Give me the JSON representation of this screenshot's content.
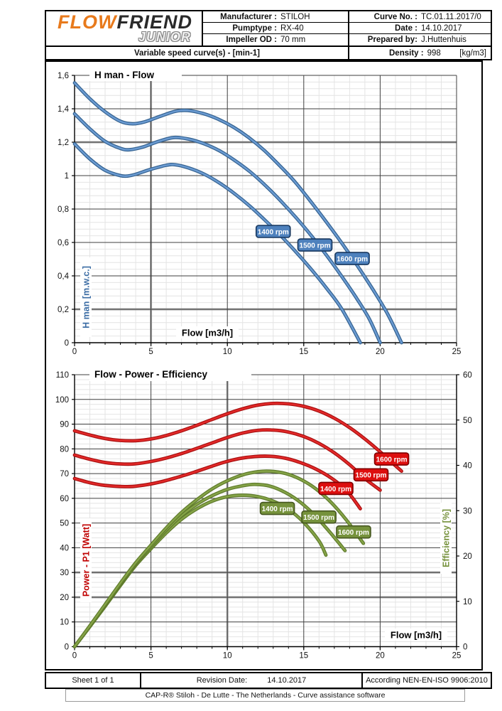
{
  "header": {
    "logo": {
      "flow": "FLOW",
      "friend": "FRIEND",
      "junior": "JUNIOR"
    },
    "manufacturer": {
      "label": "Manufacturer :",
      "value": "STILOH"
    },
    "pumptype": {
      "label": "Pumptype :",
      "value": "RX-40"
    },
    "impeller": {
      "label": "Impeller OD :",
      "value": "70 mm"
    },
    "curve_no": {
      "label": "Curve No. :",
      "value": "TC.01.11.2017/0"
    },
    "date": {
      "label": "Date :",
      "value": "14.10.2017"
    },
    "prepared": {
      "label": "Prepared by:",
      "value": "J.Huttenhuis"
    },
    "variable_speed": "Variable speed curve(s) -  [min-1]",
    "density": {
      "label": "Density :",
      "value": "998",
      "unit": "[kg/m3]"
    }
  },
  "footer": {
    "sheet": "Sheet 1 of 1",
    "revision": {
      "label": "Revision Date:",
      "value": "14.10.2017"
    },
    "according": "According NEN-EN-ISO 9906:2010",
    "software": "CAP-R®  Stiloh - De Lutte - The Netherlands - Curve assistance software"
  },
  "colors": {
    "blue": "#4e81bd",
    "blue_dark": "#17375e",
    "blue_edge": "#33618f",
    "blue_core": "#6b9bd2",
    "red": "#dd0f0f",
    "red_dark": "#7f0000",
    "red_edge": "#a80f0f",
    "red_core": "#e32929",
    "green": "#76923c",
    "green_dark": "#45561f",
    "green_edge": "#5e7a2b",
    "green_core": "#85a347",
    "grid_major": "#3f3f3f",
    "grid_minor": "#e4e4e4",
    "grid_emphasis": "#a8a8a8",
    "axis": "#000000",
    "label_blue": "#3d6ea5",
    "label_red": "#c00000",
    "label_green": "#76923c"
  },
  "chart_data": [
    {
      "type": "line",
      "title": "H man - Flow",
      "xlabel": "Flow [m3/h]",
      "ylabel": "H man [m.w.c.]",
      "xlim": [
        0,
        25
      ],
      "ylim": [
        0,
        1.6
      ],
      "x_ticks": [
        0,
        5,
        10,
        15,
        20,
        25
      ],
      "y_ticks": [
        0,
        0.2,
        0.4,
        0.6,
        0.8,
        1,
        1.2,
        1.4,
        1.6
      ],
      "y_tick_labels": [
        "0",
        "0,2",
        "0,4",
        "0,6",
        "0,8",
        "1",
        "1,2",
        "1,4",
        "1,6"
      ],
      "grid": true,
      "series": [
        {
          "id": "head-1400",
          "name": "1400 rpm",
          "axis": "left",
          "color": "blue",
          "label_at": [
            13.0,
            0.666
          ],
          "points": [
            [
              0,
              1.19
            ],
            [
              1,
              1.1
            ],
            [
              2,
              1.032
            ],
            [
              3,
              1.0
            ],
            [
              3.5,
              0.998
            ],
            [
              4,
              1.008
            ],
            [
              5,
              1.038
            ],
            [
              6,
              1.062
            ],
            [
              6.6,
              1.065
            ],
            [
              7.5,
              1.045
            ],
            [
              8.5,
              1.008
            ],
            [
              9.5,
              0.955
            ],
            [
              10.5,
              0.89
            ],
            [
              11.5,
              0.815
            ],
            [
              12.5,
              0.73
            ],
            [
              13.5,
              0.64
            ],
            [
              14.5,
              0.542
            ],
            [
              15.5,
              0.438
            ],
            [
              16.5,
              0.325
            ],
            [
              17.5,
              0.2
            ],
            [
              18.7,
              0
            ]
          ]
        },
        {
          "id": "head-1500",
          "name": "1500 rpm",
          "axis": "left",
          "color": "blue",
          "label_at": [
            15.73,
            0.585
          ],
          "points": [
            [
              0,
              1.37
            ],
            [
              1,
              1.28
            ],
            [
              2,
              1.205
            ],
            [
              3,
              1.163
            ],
            [
              3.6,
              1.155
            ],
            [
              4.5,
              1.172
            ],
            [
              5.5,
              1.205
            ],
            [
              6.5,
              1.228
            ],
            [
              7.5,
              1.218
            ],
            [
              8.5,
              1.19
            ],
            [
              9.5,
              1.148
            ],
            [
              10.5,
              1.09
            ],
            [
              11.5,
              1.022
            ],
            [
              12.5,
              0.94
            ],
            [
              13.5,
              0.848
            ],
            [
              14.5,
              0.748
            ],
            [
              15.5,
              0.64
            ],
            [
              16.5,
              0.522
            ],
            [
              17.5,
              0.395
            ],
            [
              18.5,
              0.26
            ],
            [
              19.3,
              0.14
            ],
            [
              20,
              0
            ]
          ]
        },
        {
          "id": "head-1600",
          "name": "1600 rpm",
          "axis": "left",
          "color": "blue",
          "label_at": [
            18.17,
            0.504
          ],
          "points": [
            [
              0,
              1.555
            ],
            [
              1,
              1.46
            ],
            [
              2,
              1.382
            ],
            [
              3,
              1.325
            ],
            [
              3.8,
              1.31
            ],
            [
              4.6,
              1.322
            ],
            [
              5.6,
              1.355
            ],
            [
              6.6,
              1.385
            ],
            [
              7.4,
              1.39
            ],
            [
              8.4,
              1.372
            ],
            [
              9.4,
              1.338
            ],
            [
              10.4,
              1.29
            ],
            [
              11.4,
              1.228
            ],
            [
              12.4,
              1.152
            ],
            [
              13.4,
              1.062
            ],
            [
              14.4,
              0.965
            ],
            [
              15.5,
              0.84
            ],
            [
              16.5,
              0.72
            ],
            [
              17.5,
              0.595
            ],
            [
              18.5,
              0.462
            ],
            [
              19.5,
              0.322
            ],
            [
              20.5,
              0.17
            ],
            [
              21.4,
              0
            ]
          ]
        }
      ]
    },
    {
      "type": "line",
      "title": "Flow - Power - Efficiency",
      "xlabel": "Flow [m3/h]",
      "ylabel_left": "Power - P1 [Watt]",
      "ylabel_right": "Efficiency  [%]",
      "xlim": [
        0,
        25
      ],
      "ylim_left": [
        0,
        110
      ],
      "ylim_right": [
        0,
        60
      ],
      "x_ticks": [
        0,
        5,
        10,
        15,
        20,
        25
      ],
      "left_ticks": [
        0,
        10,
        20,
        30,
        40,
        50,
        60,
        70,
        80,
        90,
        100,
        110
      ],
      "right_ticks": [
        0,
        10,
        20,
        30,
        40,
        50,
        60
      ],
      "grid": true,
      "series": [
        {
          "id": "eff-1400",
          "name": "1400 rpm",
          "axis": "right",
          "color": "green",
          "label_at": [
            13.27,
            30.5
          ],
          "points": [
            [
              0,
              0
            ],
            [
              1,
              4.4
            ],
            [
              2,
              8.9
            ],
            [
              3,
              13.5
            ],
            [
              4,
              17.9
            ],
            [
              5,
              21.6
            ],
            [
              6,
              25.1
            ],
            [
              7,
              28.1
            ],
            [
              8,
              30.4
            ],
            [
              9,
              32.1
            ],
            [
              10,
              33.1
            ],
            [
              11,
              33.4
            ],
            [
              12,
              33.1
            ],
            [
              13,
              32.1
            ],
            [
              14,
              30.3
            ],
            [
              15,
              27.4
            ],
            [
              16,
              23.3
            ],
            [
              16.45,
              20.2
            ]
          ]
        },
        {
          "id": "eff-1500",
          "name": "1500 rpm",
          "axis": "right",
          "color": "green",
          "label_at": [
            15.99,
            28.6
          ],
          "points": [
            [
              0,
              0
            ],
            [
              1,
              4.5
            ],
            [
              2,
              9.1
            ],
            [
              3,
              13.7
            ],
            [
              4,
              18.2
            ],
            [
              5,
              22.0
            ],
            [
              6,
              25.7
            ],
            [
              7,
              28.9
            ],
            [
              8,
              31.4
            ],
            [
              9,
              33.3
            ],
            [
              10,
              34.7
            ],
            [
              11,
              35.5
            ],
            [
              11.8,
              35.8
            ],
            [
              12.8,
              35.4
            ],
            [
              13.8,
              34.0
            ],
            [
              14.8,
              31.8
            ],
            [
              15.8,
              28.7
            ],
            [
              16.8,
              24.9
            ],
            [
              17.7,
              21.2
            ]
          ]
        },
        {
          "id": "eff-1600",
          "name": "1600 rpm",
          "axis": "right",
          "color": "green",
          "label_at": [
            18.26,
            25.3
          ],
          "points": [
            [
              0,
              0
            ],
            [
              1,
              4.6
            ],
            [
              2,
              9.3
            ],
            [
              3,
              14.0
            ],
            [
              4,
              18.5
            ],
            [
              5,
              22.4
            ],
            [
              6,
              26.2
            ],
            [
              7,
              29.6
            ],
            [
              8,
              32.4
            ],
            [
              9,
              34.8
            ],
            [
              10,
              36.6
            ],
            [
              11,
              37.9
            ],
            [
              12,
              38.6
            ],
            [
              12.8,
              38.7
            ],
            [
              13.8,
              38.2
            ],
            [
              14.8,
              36.9
            ],
            [
              15.8,
              34.8
            ],
            [
              16.8,
              31.8
            ],
            [
              17.8,
              27.9
            ],
            [
              18.9,
              22.8
            ]
          ]
        },
        {
          "id": "power-1400",
          "name": "1400 rpm",
          "axis": "left",
          "color": "red",
          "label_at": [
            17.1,
            64.0
          ],
          "points": [
            [
              0,
              68
            ],
            [
              1,
              66.3
            ],
            [
              2,
              65.2
            ],
            [
              3,
              64.8
            ],
            [
              3.8,
              64.8
            ],
            [
              4.8,
              65.6
            ],
            [
              5.8,
              66.9
            ],
            [
              6.8,
              68.6
            ],
            [
              7.8,
              70.5
            ],
            [
              8.8,
              72.6
            ],
            [
              9.8,
              74.6
            ],
            [
              10.8,
              76.1
            ],
            [
              11.8,
              76.9
            ],
            [
              12.8,
              77.0
            ],
            [
              13.8,
              76.2
            ],
            [
              14.8,
              74.4
            ],
            [
              15.8,
              71.8
            ],
            [
              16.8,
              68.2
            ],
            [
              17.8,
              63.2
            ],
            [
              18.7,
              55.8
            ]
          ]
        },
        {
          "id": "power-1500",
          "name": "1500 rpm",
          "axis": "left",
          "color": "red",
          "label_at": [
            19.4,
            69.5
          ],
          "points": [
            [
              0,
              77.5
            ],
            [
              1,
              75.8
            ],
            [
              2,
              74.5
            ],
            [
              3,
              73.9
            ],
            [
              3.9,
              73.9
            ],
            [
              5,
              74.9
            ],
            [
              6,
              76.3
            ],
            [
              7,
              78.1
            ],
            [
              8,
              80.2
            ],
            [
              9,
              82.4
            ],
            [
              10,
              84.6
            ],
            [
              11,
              86.4
            ],
            [
              12,
              87.5
            ],
            [
              13,
              87.6
            ],
            [
              14,
              86.8
            ],
            [
              15,
              85.0
            ],
            [
              16,
              82.2
            ],
            [
              17,
              78.4
            ],
            [
              18,
              73.6
            ],
            [
              19,
              68.0
            ],
            [
              20,
              63.3
            ]
          ]
        },
        {
          "id": "power-1600",
          "name": "1600 rpm",
          "axis": "left",
          "color": "red",
          "label_at": [
            20.75,
            75.9
          ],
          "points": [
            [
              0,
              87.3
            ],
            [
              1,
              85.6
            ],
            [
              2,
              84.2
            ],
            [
              3,
              83.4
            ],
            [
              4,
              83.3
            ],
            [
              5,
              84.0
            ],
            [
              6,
              85.4
            ],
            [
              7,
              87.3
            ],
            [
              8,
              89.5
            ],
            [
              9,
              91.9
            ],
            [
              10,
              94.2
            ],
            [
              11,
              96.2
            ],
            [
              12,
              97.7
            ],
            [
              13,
              98.4
            ],
            [
              14,
              98.2
            ],
            [
              15,
              97.2
            ],
            [
              16,
              95.3
            ],
            [
              17,
              92.4
            ],
            [
              18,
              88.6
            ],
            [
              19,
              84.0
            ],
            [
              20,
              78.8
            ],
            [
              21,
              73.2
            ],
            [
              21.4,
              71.0
            ]
          ]
        }
      ]
    }
  ]
}
